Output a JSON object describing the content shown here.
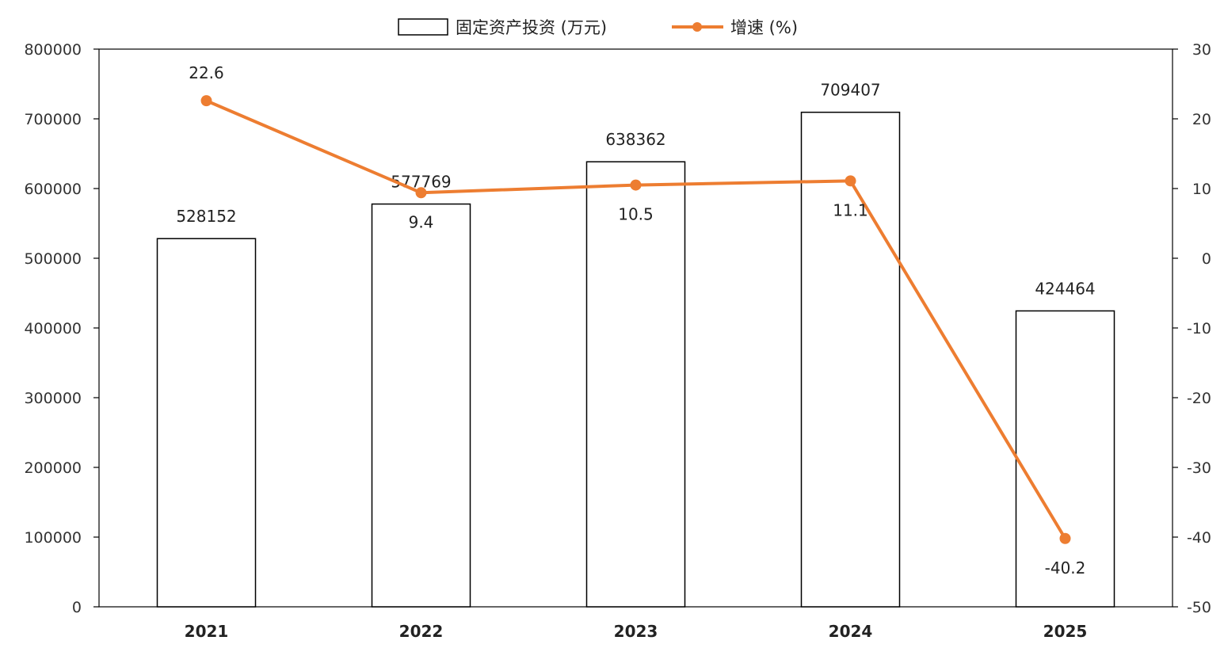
{
  "chart_data": {
    "type": "bar",
    "categories": [
      "2021",
      "2022",
      "2023",
      "2024",
      "2025"
    ],
    "series": [
      {
        "name": "固定资产投资 (万元)",
        "type": "bar",
        "axis": "left",
        "values": [
          528152,
          577769,
          638362,
          709407,
          424464
        ],
        "labels": [
          "528152",
          "577769",
          "638362",
          "709407",
          "424464"
        ]
      },
      {
        "name": "增速 (%)",
        "type": "line",
        "axis": "right",
        "values": [
          22.6,
          9.4,
          10.5,
          11.1,
          -40.2
        ],
        "labels": [
          "22.6",
          "9.4",
          "10.5",
          "11.1",
          "-40.2"
        ]
      }
    ],
    "y_left": {
      "range": [
        0,
        800000
      ],
      "ticks": [
        0,
        100000,
        200000,
        300000,
        400000,
        500000,
        600000,
        700000,
        800000
      ],
      "tick_labels": [
        "0",
        "100000",
        "200000",
        "300000",
        "400000",
        "500000",
        "600000",
        "700000",
        "800000"
      ]
    },
    "y_right": {
      "range": [
        -50,
        30
      ],
      "ticks": [
        -50,
        -40,
        -30,
        -20,
        -10,
        0,
        10,
        20,
        30
      ],
      "tick_labels": [
        "-50",
        "-40",
        "-30",
        "-20",
        "-10",
        "0",
        "10",
        "20",
        "30"
      ]
    },
    "legend_position": "top-center",
    "grid": false,
    "colors": {
      "bar_fill": "#ffffff",
      "bar_stroke": "#000000",
      "line": "#ED7D31"
    }
  }
}
